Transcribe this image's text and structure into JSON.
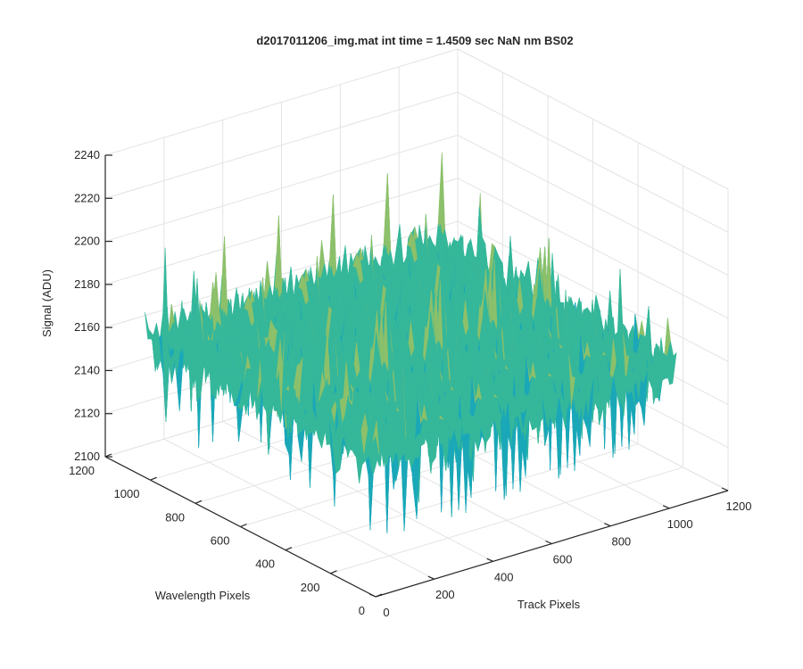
{
  "chart_data": {
    "type": "surface",
    "title": "d2017011206_img.mat int time = 1.4509 sec  NaN nm BS02",
    "xlabel": "Track Pixels",
    "ylabel": "Wavelength Pixels",
    "zlabel": "Signal (ADU)",
    "xlim": [
      0,
      1200
    ],
    "ylim": [
      0,
      1200
    ],
    "zlim": [
      2100,
      2240
    ],
    "xticks": [
      "0",
      "200",
      "400",
      "600",
      "800",
      "1000",
      "1200"
    ],
    "yticks": [
      "0",
      "200",
      "400",
      "600",
      "800",
      "1000",
      "1200"
    ],
    "zticks": [
      "2100",
      "2120",
      "2140",
      "2160",
      "2180",
      "2200",
      "2220",
      "2240"
    ],
    "grid": true,
    "colormap": "parula",
    "surface_summary": {
      "x_extent": [
        0,
        1024
      ],
      "y_extent": [
        0,
        1024
      ],
      "mean_signal": 2165,
      "min_signal": 2104,
      "max_signal": 2235,
      "noise_std": 14
    },
    "colors": {
      "low": "#1f8fd8",
      "mid_low": "#1aa8b8",
      "mid": "#35b79a",
      "mid_high": "#8cc06a",
      "high": "#d4bd45"
    }
  }
}
